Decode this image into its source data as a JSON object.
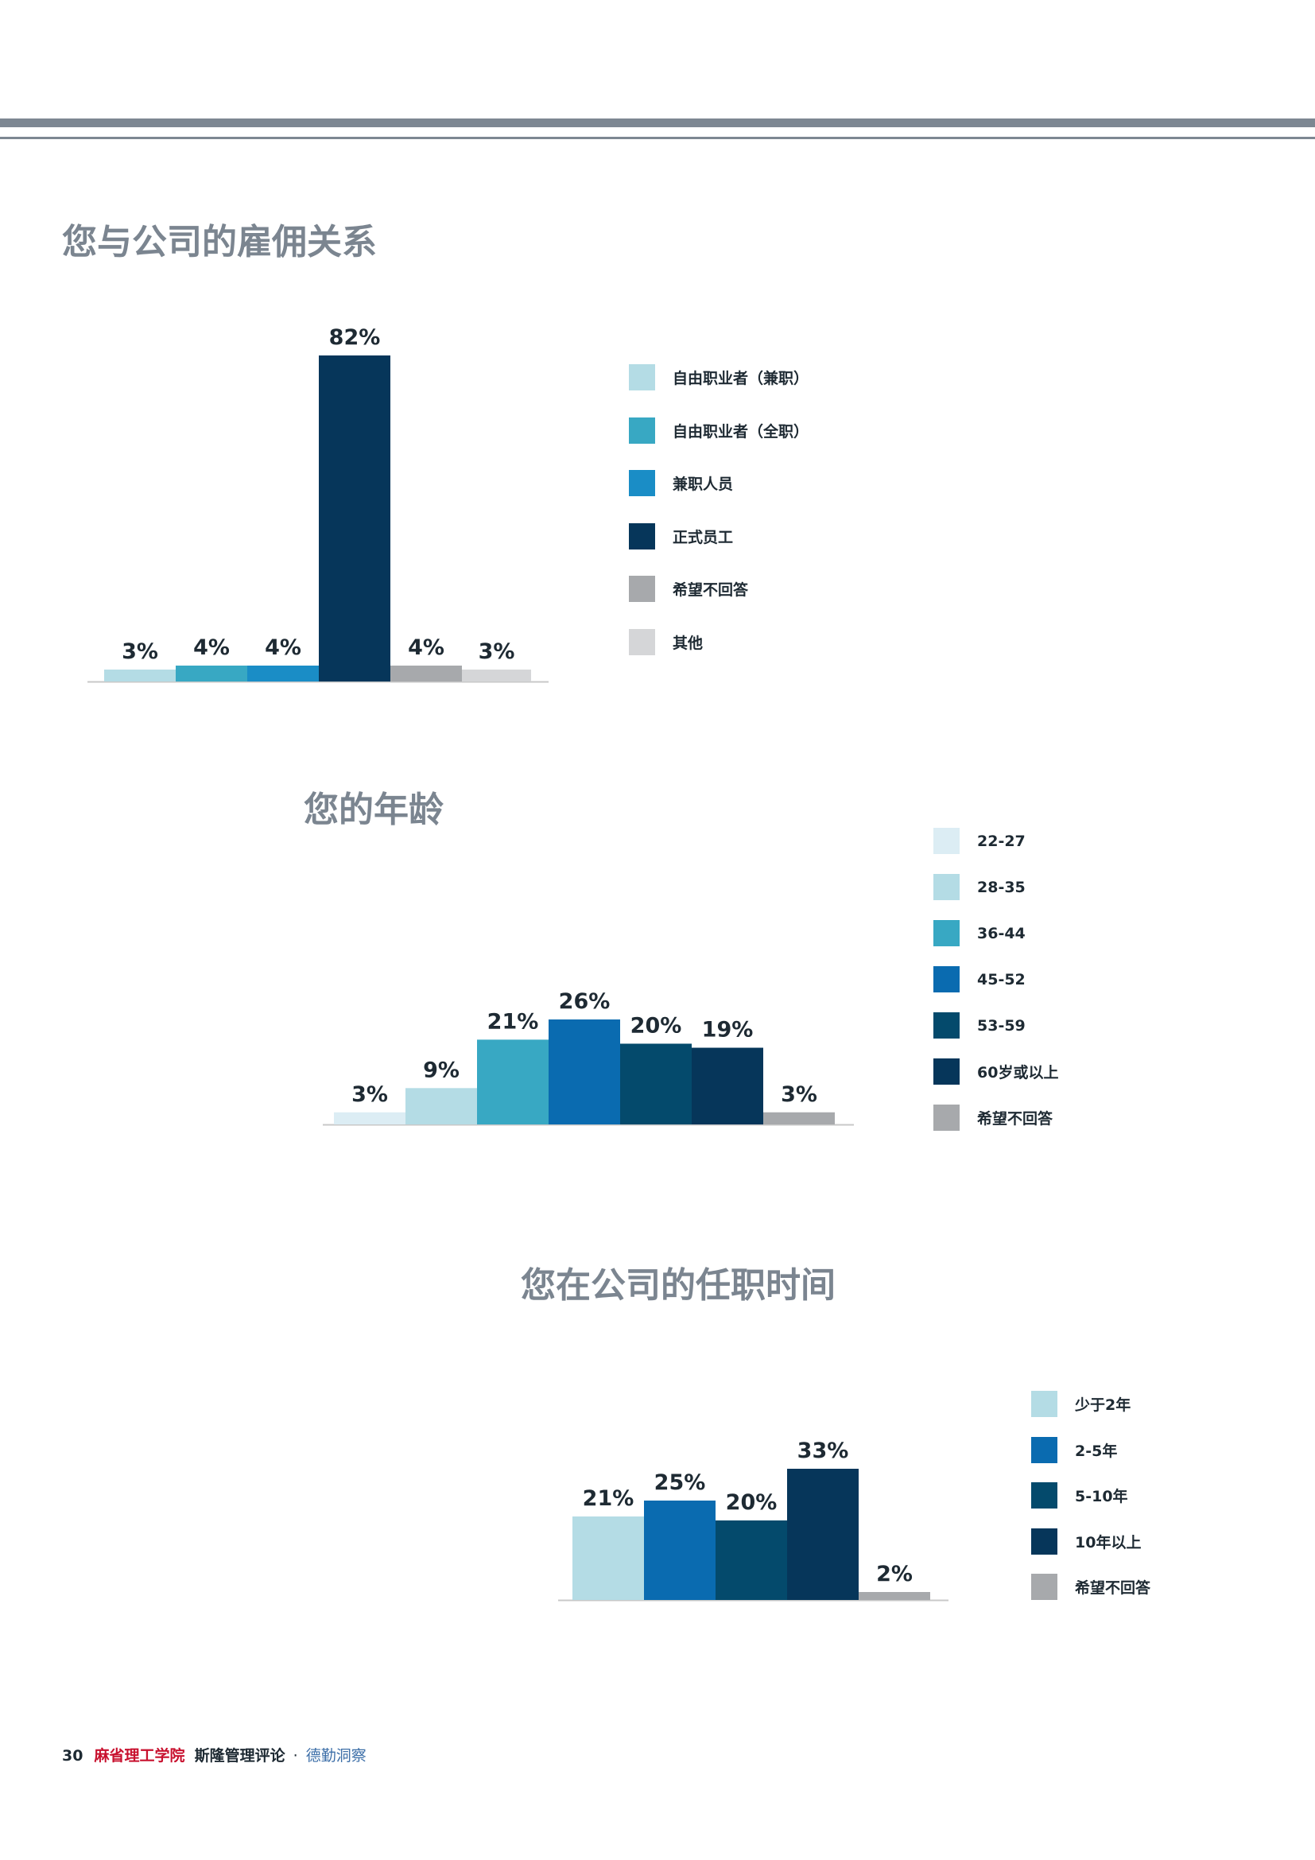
{
  "colors": {
    "c1": "#b4dce5",
    "c2": "#38a8c3",
    "c3": "#1a8dc6",
    "c4": "#06365a",
    "c5": "#a7a9ac",
    "c6": "#d5d6d8",
    "age1": "#dcedf4",
    "age2": "#b4dce5",
    "age3": "#38a8c3",
    "age4": "#0a6bb0",
    "age5": "#044a6c",
    "age6": "#06365a",
    "age7": "#a7a9ac",
    "axis": "#c8c8c8",
    "label_text": "#1e2a33"
  },
  "chart_data": [
    {
      "type": "bar",
      "title": "您与公司的雇佣关系",
      "categories": [
        "自由职业者（兼职）",
        "自由职业者（全职）",
        "兼职人员",
        "正式员工",
        "希望不回答",
        "其他"
      ],
      "values": [
        3,
        4,
        4,
        82,
        4,
        3
      ],
      "value_labels": [
        "3%",
        "4%",
        "4%",
        "82%",
        "4%",
        "3%"
      ],
      "colors": [
        "#b4dce5",
        "#38a8c3",
        "#1a8dc6",
        "#06365a",
        "#a7a9ac",
        "#d5d6d8"
      ],
      "ylim": [
        0,
        82
      ],
      "legend": "right",
      "grid": false
    },
    {
      "type": "bar",
      "title": "您的年龄",
      "categories": [
        "22-27",
        "28-35",
        "36-44",
        "45-52",
        "53-59",
        "60岁或以上",
        "希望不回答"
      ],
      "values": [
        3,
        9,
        21,
        26,
        20,
        19,
        3
      ],
      "value_labels": [
        "3%",
        "9%",
        "21%",
        "26%",
        "20%",
        "19%",
        "3%"
      ],
      "colors": [
        "#dcedf4",
        "#b4dce5",
        "#38a8c3",
        "#0a6bb0",
        "#044a6c",
        "#06365a",
        "#a7a9ac"
      ],
      "ylim": [
        0,
        26
      ],
      "legend": "right",
      "grid": false
    },
    {
      "type": "bar",
      "title": "您在公司的任职时间",
      "categories": [
        "少于2年",
        "2-5年",
        "5-10年",
        "10年以上",
        "希望不回答"
      ],
      "values": [
        21,
        25,
        20,
        33,
        2
      ],
      "value_labels": [
        "21%",
        "25%",
        "20%",
        "33%",
        "2%"
      ],
      "colors": [
        "#b4dce5",
        "#0a6bb0",
        "#044a6c",
        "#06365a",
        "#a7a9ac"
      ],
      "ylim": [
        0,
        33
      ],
      "legend": "right",
      "grid": false
    }
  ],
  "footer": {
    "page_number": "30",
    "mit": "麻省理工学院",
    "smr": "斯隆管理评论",
    "separator": "·",
    "deloitte": "德勤洞察"
  }
}
